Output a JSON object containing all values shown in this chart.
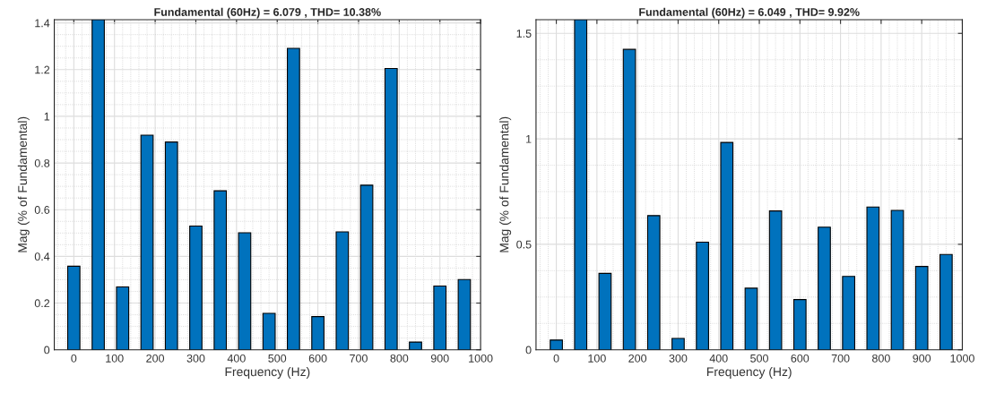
{
  "chart_data": [
    {
      "type": "bar",
      "title": "Fundamental (60Hz) = 6.079 , THD= 10.38%",
      "xlabel": "Frequency (Hz)",
      "ylabel": "Mag (% of Fundamental)",
      "x": [
        0,
        60,
        120,
        180,
        240,
        300,
        360,
        420,
        480,
        540,
        600,
        660,
        720,
        780,
        840,
        900,
        960
      ],
      "series": [
        {
          "color": "#0072bd",
          "values": [
            0.358,
            1.414,
            0.269,
            0.919,
            0.89,
            0.53,
            0.681,
            0.501,
            0.156,
            1.291,
            0.142,
            0.505,
            0.705,
            1.205,
            0.033,
            0.273,
            0.301
          ]
        }
      ],
      "xlim": [
        -48,
        1000
      ],
      "xticks": [
        0,
        100,
        200,
        300,
        400,
        500,
        600,
        700,
        800,
        900,
        1000
      ],
      "ylim": [
        0,
        1.414
      ],
      "yticks": [
        0,
        0.2,
        0.4,
        0.6,
        0.8,
        1,
        1.2,
        1.4
      ],
      "grid": true
    },
    {
      "type": "bar",
      "title": "Fundamental (60Hz) = 6.049 , THD= 9.92%",
      "xlabel": "Frequency (Hz)",
      "ylabel": "Mag (% of Fundamental)",
      "x": [
        0,
        60,
        120,
        180,
        240,
        300,
        360,
        420,
        480,
        540,
        600,
        660,
        720,
        780,
        840,
        900,
        960
      ],
      "series": [
        {
          "color": "#0072bd",
          "values": [
            0.046,
            1.565,
            0.362,
            1.424,
            0.636,
            0.054,
            0.51,
            0.983,
            0.292,
            0.658,
            0.238,
            0.581,
            0.348,
            0.677,
            0.661,
            0.395,
            0.452
          ]
        }
      ],
      "xlim": [
        -50,
        1000
      ],
      "xticks": [
        0,
        100,
        200,
        300,
        400,
        500,
        600,
        700,
        800,
        900,
        1000
      ],
      "ylim": [
        0,
        1.565
      ],
      "yticks": [
        0,
        0.5,
        1,
        1.5
      ],
      "grid": true
    }
  ]
}
